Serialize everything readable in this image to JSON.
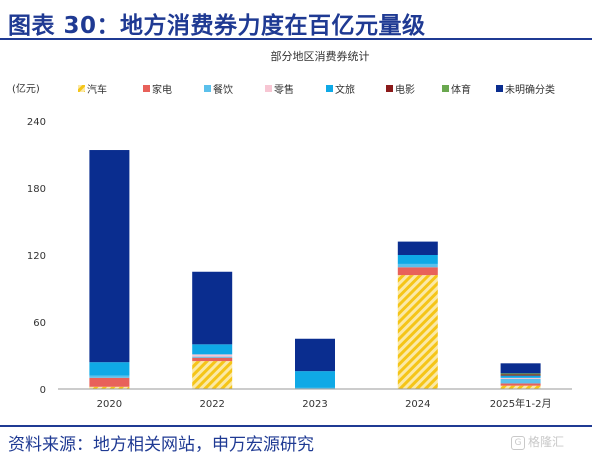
{
  "figure_title": "图表 30：地方消费券力度在百亿元量级",
  "source_note": "资料来源：地方相关网站，申万宏源研究",
  "watermark": "格隆汇",
  "watermark_glyph": "G",
  "chart_data": {
    "type": "bar",
    "stacked": true,
    "title": "部分地区消费券统计",
    "unit_label": "(亿元)",
    "categories": [
      "2020",
      "2022",
      "2023",
      "2024",
      "2025年1-2月"
    ],
    "ylim": [
      0,
      240
    ],
    "yticks": [
      0,
      60,
      120,
      180,
      240
    ],
    "grid": false,
    "legend_position": "top",
    "series": [
      {
        "name": "汽车",
        "color": "#f5c518",
        "pattern": "hatch",
        "values": [
          2,
          25,
          0,
          102,
          3
        ]
      },
      {
        "name": "家电",
        "color": "#e8615a",
        "values": [
          8,
          3,
          0,
          7,
          2
        ]
      },
      {
        "name": "餐饮",
        "color": "#5bc0eb",
        "values": [
          2,
          1,
          1,
          3,
          4
        ]
      },
      {
        "name": "零售",
        "color": "#f7c6d3",
        "values": [
          0,
          2,
          0,
          0,
          1
        ]
      },
      {
        "name": "文旅",
        "color": "#0fa9e6",
        "values": [
          12,
          9,
          15,
          8,
          2
        ]
      },
      {
        "name": "电影",
        "color": "#8b1a1a",
        "values": [
          0,
          0,
          0,
          0,
          1
        ]
      },
      {
        "name": "体育",
        "color": "#6aa84f",
        "values": [
          0,
          0,
          0,
          0,
          1
        ]
      },
      {
        "name": "未明确分类",
        "color": "#0a2d8f",
        "values": [
          190,
          65,
          29,
          12,
          9
        ]
      }
    ]
  }
}
